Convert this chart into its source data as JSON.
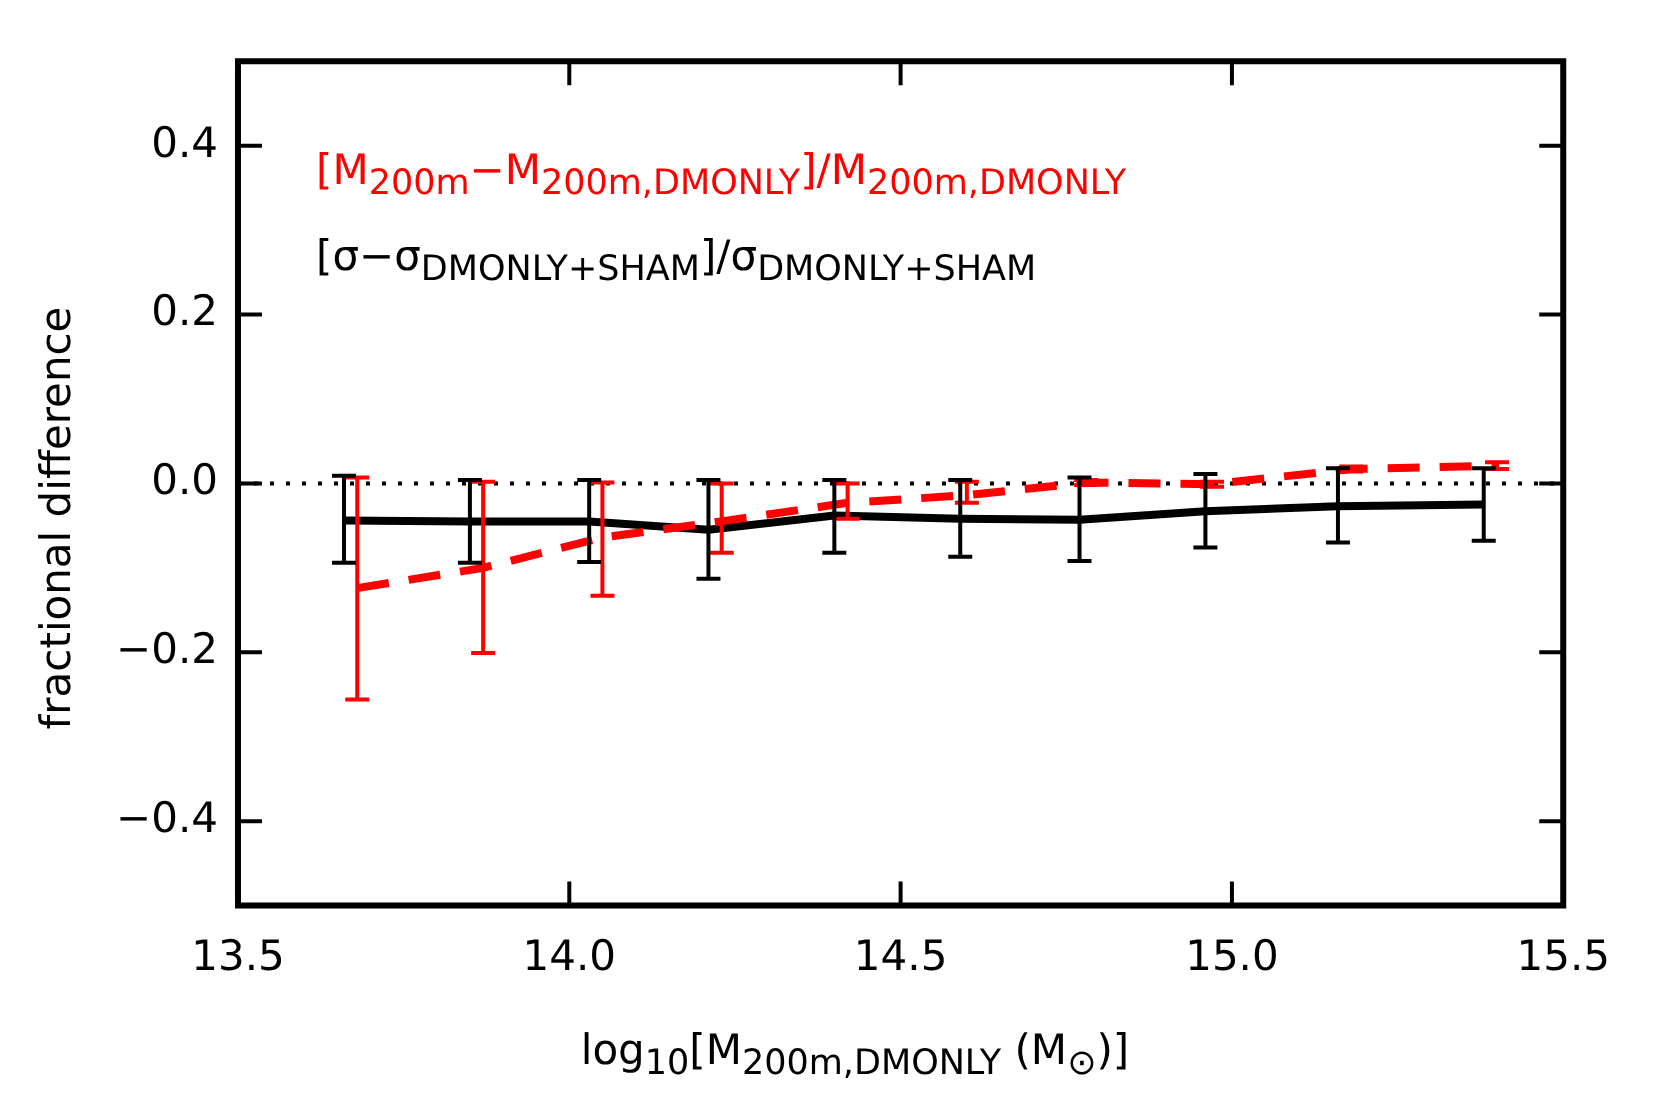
{
  "chart_data": {
    "type": "line",
    "xlabel": "log$_{10}$[M$_{200m,DMONLY}$ (M$_{⊙}$)]",
    "ylabel": "fractional difference",
    "xlim": [
      13.5,
      15.5
    ],
    "xticks": [
      {
        "value": 13.5,
        "label": "13.5"
      },
      {
        "value": 14,
        "label": "14.0"
      },
      {
        "value": 14.5,
        "label": "14.5"
      },
      {
        "value": 15,
        "label": "15.0"
      },
      {
        "value": 15.5,
        "label": "15.5"
      }
    ],
    "ylim": [
      -0.5,
      0.5
    ],
    "yticks": [
      {
        "value": -0.4,
        "label": "−0.4"
      },
      {
        "value": -0.2,
        "label": "−0.2"
      },
      {
        "value": 0,
        "label": "0.0"
      },
      {
        "value": 0.2,
        "label": "0.2"
      },
      {
        "value": 0.4,
        "label": "0.4"
      }
    ],
    "grid": false,
    "legend": "top left",
    "marker": "none",
    "ref_lines": [
      {
        "axis": "y",
        "value": 0,
        "color": "#000000",
        "line_style": "dotted"
      }
    ],
    "series": [
      {
        "name": "[M$_{200m}$−M$_{200m,DMONLY}$]/M$_{200m,DMONLY}$",
        "color": "#ff0000",
        "line_style": "dashed",
        "x": [
          13.68,
          13.87,
          14.05,
          14.23,
          14.42,
          14.6,
          14.78,
          14.97,
          15.18,
          15.4
        ],
        "values": [
          -0.124,
          -0.1,
          -0.064,
          -0.045,
          -0.023,
          -0.014,
          0.001,
          -0.001,
          0.017,
          0.021
        ],
        "errors": [
          [
            -0.256,
            0.007
          ],
          [
            -0.201,
            0.002
          ],
          [
            -0.133,
            0.001
          ],
          [
            -0.082,
            0
          ],
          [
            -0.042,
            0
          ],
          [
            -0.023,
            0.002
          ],
          [
            -0.002,
            0.004
          ],
          [
            -0.004,
            0.002
          ],
          [
            0.014,
            0.02
          ],
          [
            0.017,
            0.025
          ]
        ]
      },
      {
        "name": "[σ−σ$_{DMONLY+SHAM}$]/σ$_{DMONLY+SHAM}$",
        "color": "#000000",
        "line_style": "solid",
        "x": [
          13.66,
          13.85,
          14.03,
          14.21,
          14.4,
          14.59,
          14.77,
          14.96,
          15.16,
          15.38
        ],
        "values": [
          -0.044,
          -0.045,
          -0.045,
          -0.055,
          -0.038,
          -0.042,
          -0.043,
          -0.033,
          -0.027,
          -0.025
        ],
        "errors": [
          [
            -0.094,
            0.009
          ],
          [
            -0.094,
            0.004
          ],
          [
            -0.093,
            0.004
          ],
          [
            -0.113,
            0.004
          ],
          [
            -0.082,
            0.004
          ],
          [
            -0.087,
            0.004
          ],
          [
            -0.092,
            0.007
          ],
          [
            -0.076,
            0.011
          ],
          [
            -0.07,
            0.018
          ],
          [
            -0.068,
            0.018
          ]
        ]
      }
    ]
  }
}
